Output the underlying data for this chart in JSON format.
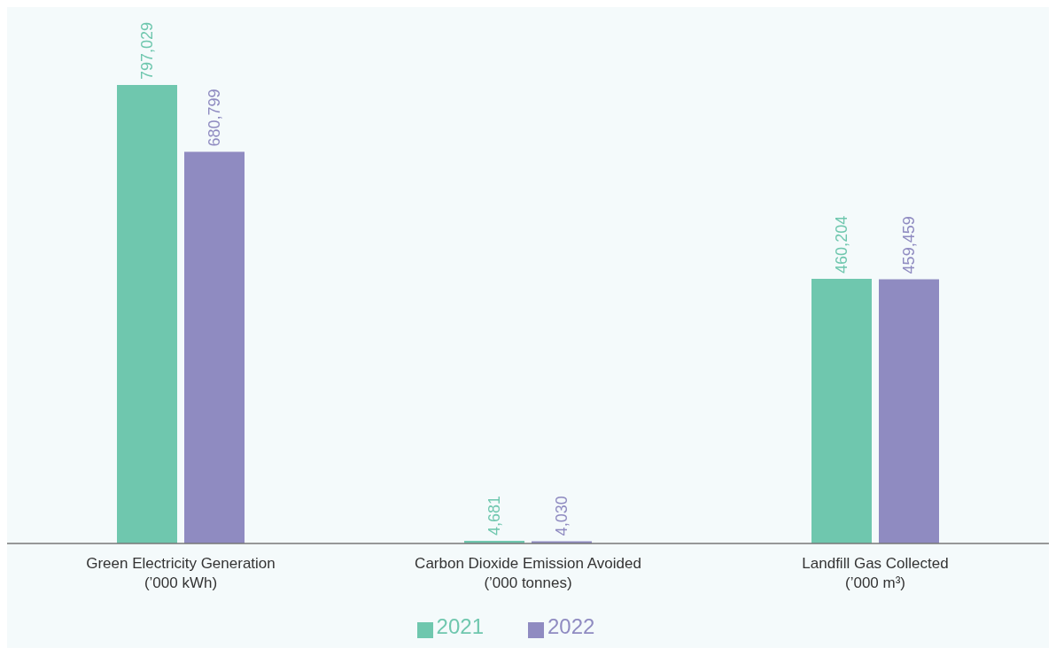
{
  "chart_data": {
    "type": "bar",
    "categories": [
      "Green Electricity Generation\n(’000 kWh)",
      "Carbon Dioxide Emission Avoided\n(’000 tonnes)",
      "Landfill Gas Collected\n(’000 m³)"
    ],
    "series": [
      {
        "name": "2021",
        "color": "#6fc7ae",
        "values": [
          797029,
          4681,
          460204
        ],
        "value_labels": [
          "797,029",
          "4,681",
          "460,204"
        ]
      },
      {
        "name": "2022",
        "color": "#8f8bc1",
        "values": [
          680799,
          4030,
          459459
        ],
        "value_labels": [
          "680,799",
          "4,030",
          "459,459"
        ]
      }
    ],
    "legend": "bottom",
    "grid": false
  }
}
